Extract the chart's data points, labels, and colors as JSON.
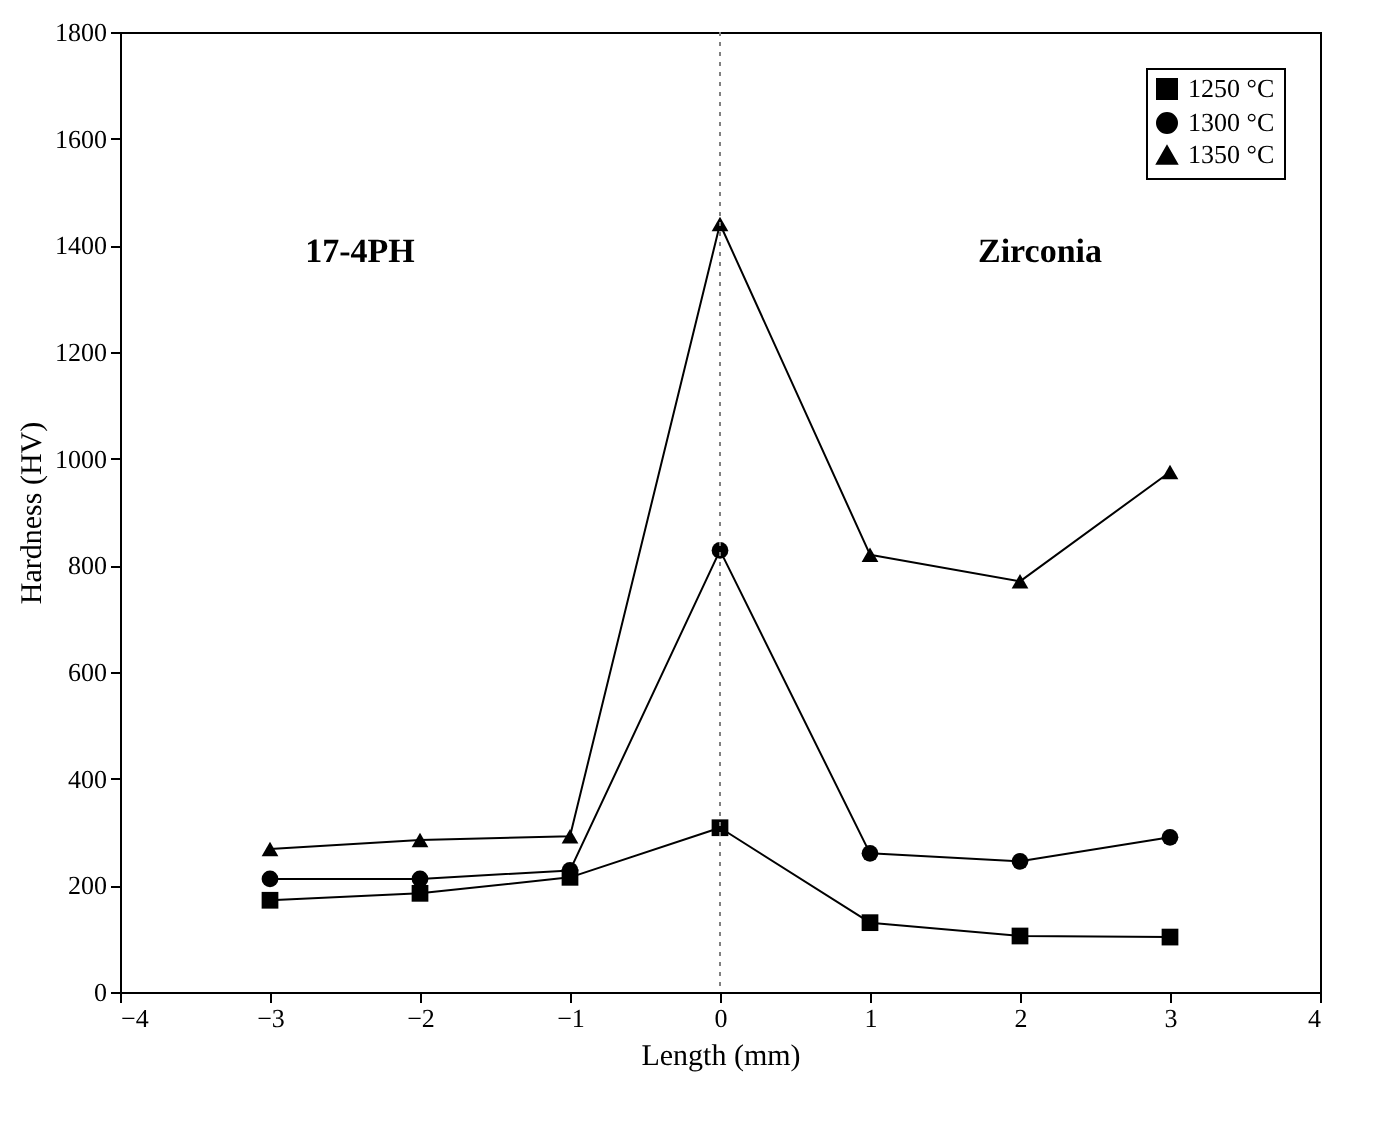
{
  "chart_data": {
    "type": "line",
    "xlabel": "Length (mm)",
    "ylabel": "Hardness (HV)",
    "x": [
      -3,
      -2,
      -1,
      0,
      1,
      2,
      3
    ],
    "series": [
      {
        "name": "1250 °C",
        "color": "#000000",
        "marker": "square",
        "values": [
          172,
          185,
          215,
          308,
          130,
          105,
          103
        ]
      },
      {
        "name": "1300 °C",
        "color": "#000000",
        "marker": "circle",
        "values": [
          212,
          212,
          228,
          828,
          260,
          245,
          290
        ]
      },
      {
        "name": "1350 °C",
        "color": "#000000",
        "marker": "triangle",
        "values": [
          268,
          285,
          292,
          1440,
          820,
          770,
          975
        ]
      }
    ],
    "xlim": [
      -4,
      4
    ],
    "xticks": [
      {
        "value": -4,
        "label": "−4"
      },
      {
        "value": -3,
        "label": "−3"
      },
      {
        "value": -2,
        "label": "−2"
      },
      {
        "value": -1,
        "label": "−1"
      },
      0,
      1,
      2,
      3,
      4
    ],
    "ylim": [
      0,
      1800
    ],
    "yticks": [
      0,
      200,
      400,
      600,
      800,
      1000,
      1200,
      1400,
      1600,
      1800
    ],
    "grid": false,
    "legend": "top right",
    "line_style": "solid",
    "ref_lines": [
      {
        "axis": "x",
        "value": 0,
        "color": "#808080",
        "line_style": "dotted"
      }
    ],
    "annotations": [
      "17-4PH",
      "Zirconia"
    ]
  }
}
